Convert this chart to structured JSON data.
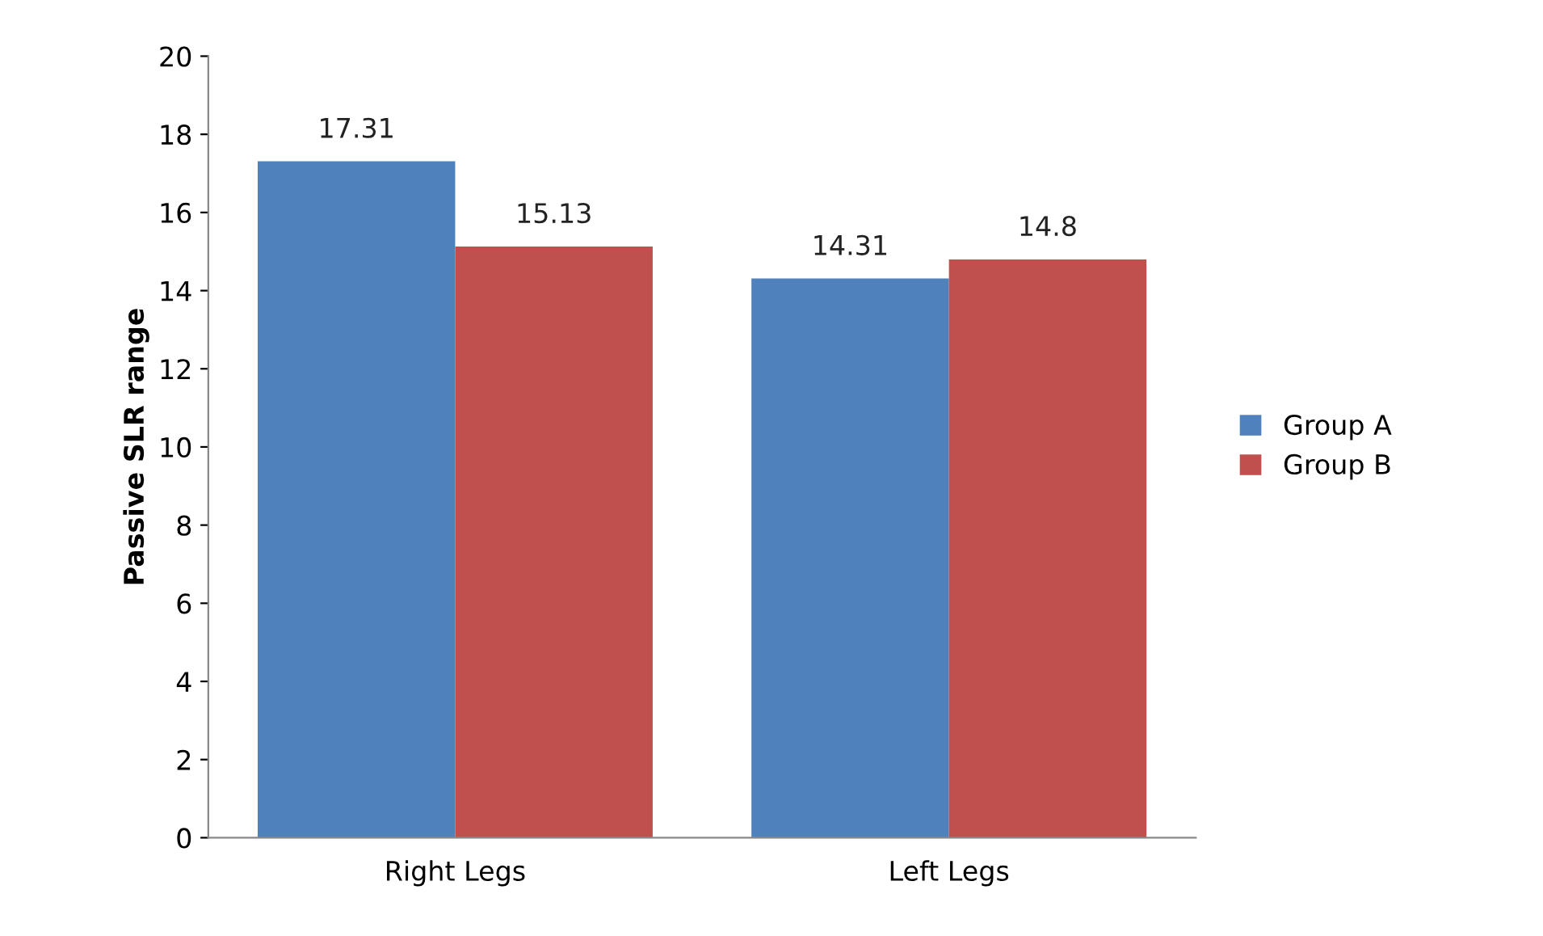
{
  "chart_data": {
    "type": "bar",
    "ylabel": "Passive SLR range",
    "categories": [
      "Right Legs",
      "Left Legs"
    ],
    "series": [
      {
        "name": "Group A",
        "color": "#4f81bd",
        "values": [
          17.31,
          14.31
        ]
      },
      {
        "name": "Group B",
        "color": "#c0504d",
        "values": [
          15.13,
          14.8
        ]
      }
    ],
    "ylim": [
      0,
      20
    ],
    "yticks": [
      0,
      2,
      4,
      6,
      8,
      10,
      12,
      14,
      16,
      18,
      20
    ],
    "data_labels": true,
    "legend": "right",
    "grid": false
  }
}
